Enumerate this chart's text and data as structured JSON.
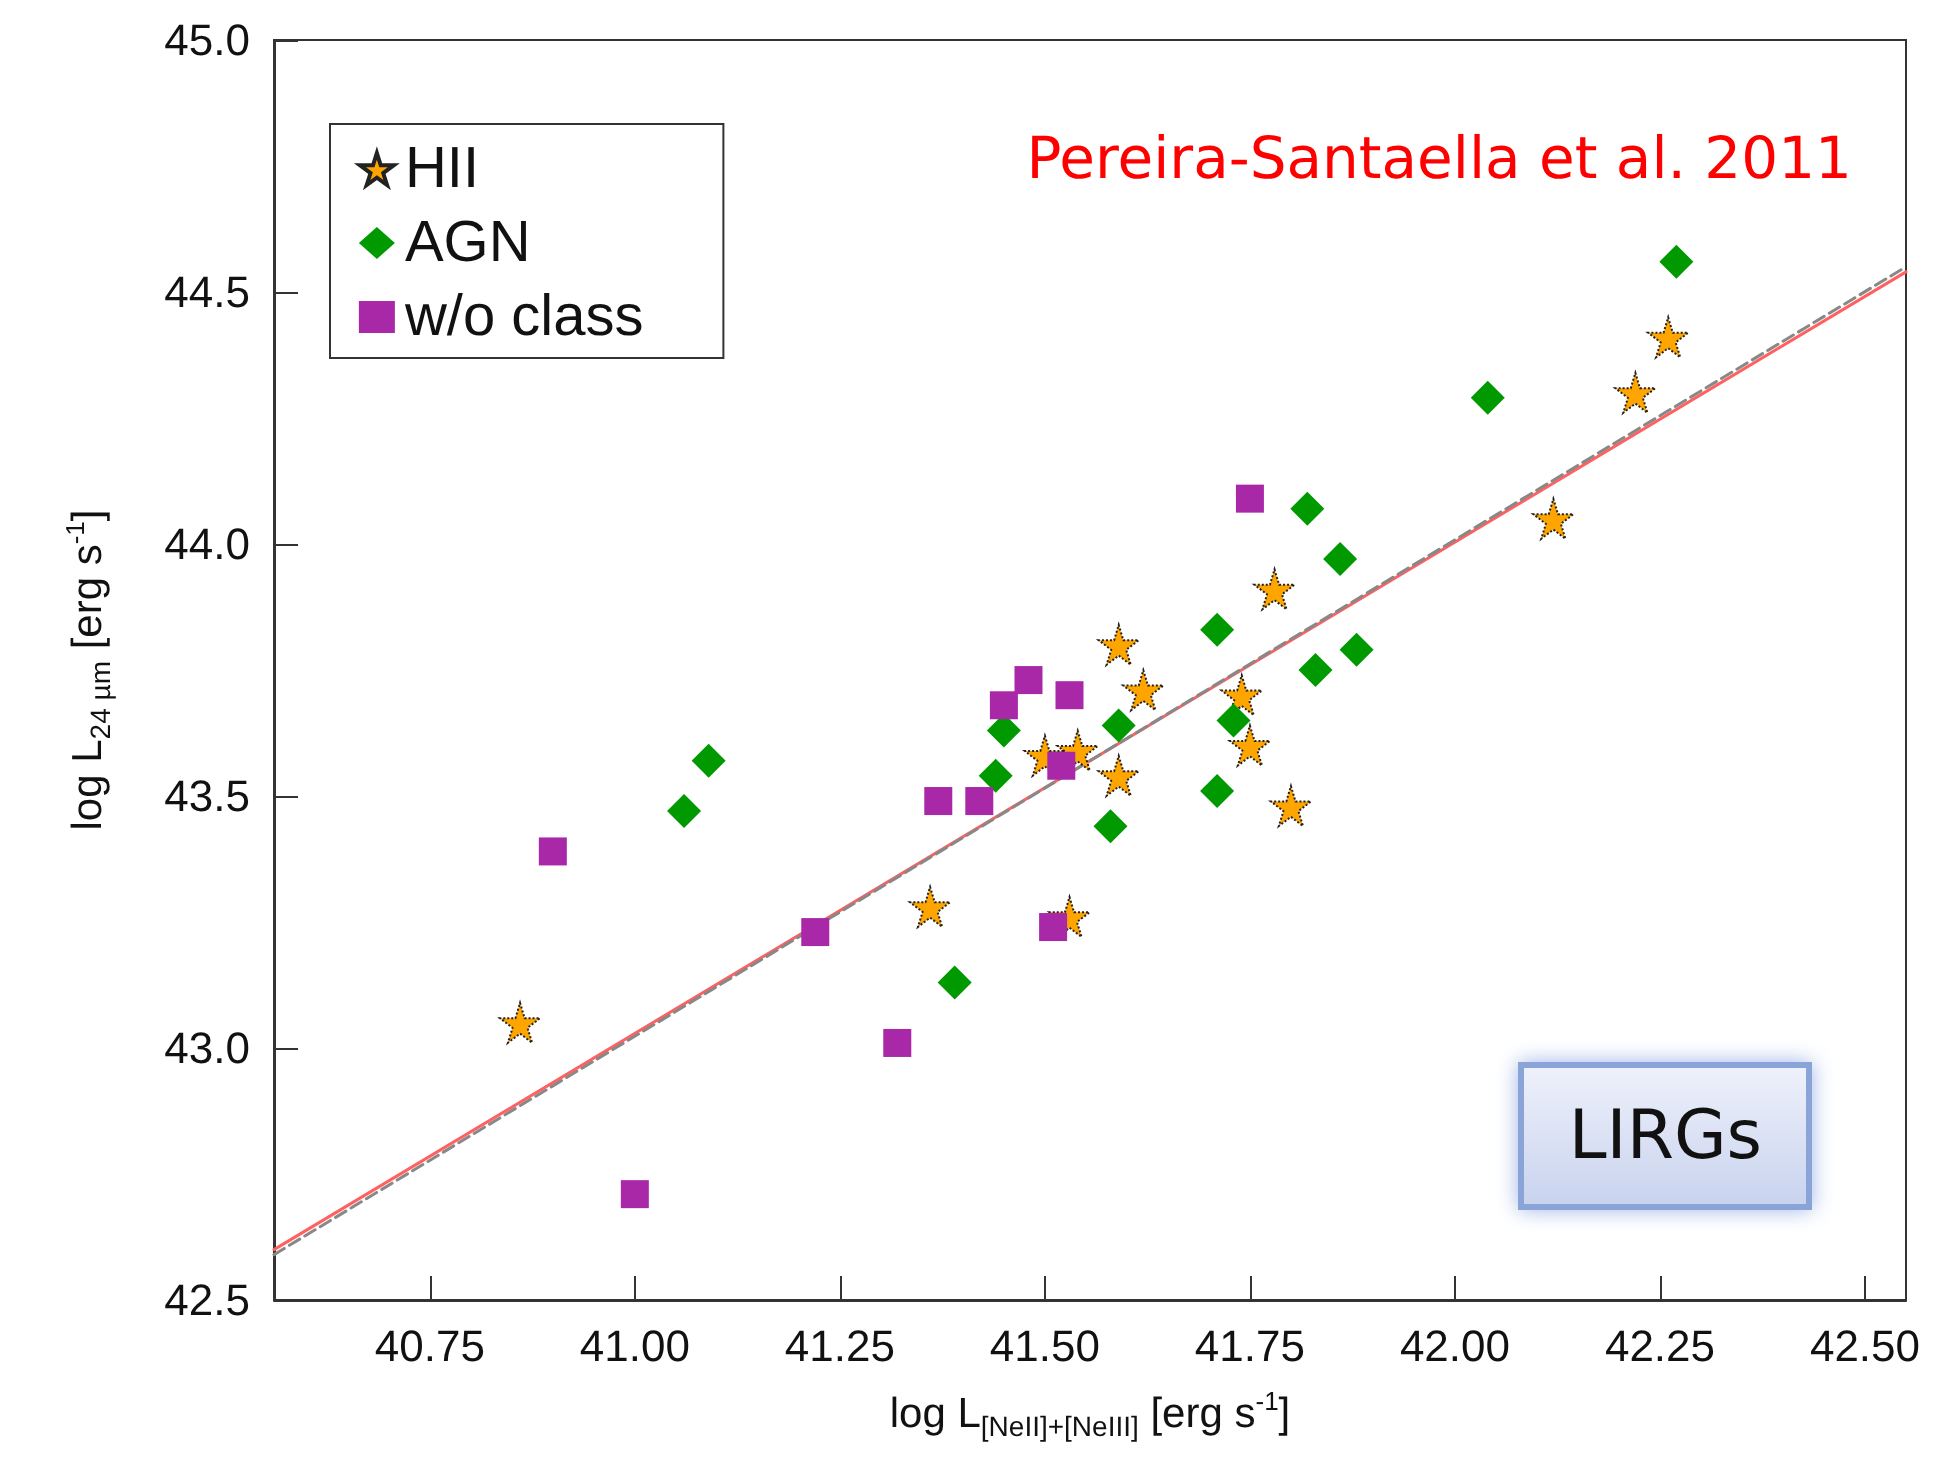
{
  "chart_data": {
    "type": "scatter",
    "xlabel": "log L$_{[NeII]+[NeIII]}$ [erg s$^{-1}$]",
    "ylabel": "log L$_{24 µm}$ [erg s$^{-1}$]",
    "xlim": [
      40.56,
      42.55
    ],
    "xticks": [
      {
        "value": 40.75,
        "label": "40.75"
      },
      {
        "value": 41.0,
        "label": "41.00"
      },
      {
        "value": 41.25,
        "label": "41.25"
      },
      {
        "value": 41.5,
        "label": "41.50"
      },
      {
        "value": 41.75,
        "label": "41.75"
      },
      {
        "value": 42.0,
        "label": "42.00"
      },
      {
        "value": 42.25,
        "label": "42.25"
      },
      {
        "value": 42.5,
        "label": "42.50"
      }
    ],
    "ylim": [
      42.5,
      45.0
    ],
    "yticks": [
      {
        "value": 42.5,
        "label": "42.5"
      },
      {
        "value": 43.0,
        "label": "43.0"
      },
      {
        "value": 43.5,
        "label": "43.5"
      },
      {
        "value": 44.0,
        "label": "44.0"
      },
      {
        "value": 44.5,
        "label": "44.5"
      },
      {
        "value": 45.0,
        "label": "45.0"
      }
    ],
    "grid": false,
    "legend": "top left",
    "annotations": [
      "Pereira-Santaella et al. 2011",
      "LIRGs"
    ],
    "series": [
      {
        "name": "HII",
        "color": "#ffa500",
        "marker": "star",
        "x": [
          40.86,
          41.36,
          41.5,
          41.54,
          41.53,
          41.59,
          41.59,
          41.62,
          41.78,
          41.74,
          41.75,
          41.8,
          42.12,
          42.22,
          42.26
        ],
        "values": [
          43.05,
          43.28,
          43.58,
          43.59,
          43.26,
          43.54,
          43.8,
          43.71,
          43.91,
          43.7,
          43.6,
          43.48,
          44.05,
          44.3,
          44.41
        ]
      },
      {
        "name": "AGN",
        "color": "#009900",
        "marker": "diamond",
        "x": [
          41.06,
          41.09,
          41.39,
          41.45,
          41.44,
          41.58,
          41.59,
          41.71,
          41.71,
          41.73,
          41.83,
          41.88,
          41.86,
          41.82,
          42.04,
          42.27
        ],
        "values": [
          43.47,
          43.57,
          43.13,
          43.63,
          43.54,
          43.44,
          43.64,
          43.83,
          43.51,
          43.65,
          43.75,
          43.79,
          43.97,
          44.07,
          44.29,
          44.56
        ]
      },
      {
        "name": "w/o class",
        "color": "#a828a8",
        "marker": "square",
        "x": [
          40.9,
          41.0,
          41.22,
          41.32,
          41.37,
          41.42,
          41.45,
          41.48,
          41.53,
          41.51,
          41.52,
          41.75
        ],
        "values": [
          43.39,
          42.71,
          43.23,
          43.01,
          43.49,
          43.49,
          43.68,
          43.73,
          43.7,
          43.24,
          43.56,
          44.09
        ]
      },
      {
        "type": "line",
        "color": "#ff6060",
        "marker": "none",
        "line_style": "solid",
        "x": [
          40.56,
          42.55
        ],
        "values": [
          42.6,
          44.54
        ]
      },
      {
        "type": "line",
        "color": "#888888",
        "marker": "none",
        "line_style": "dashed",
        "x": [
          40.56,
          42.55
        ],
        "values": [
          42.59,
          44.55
        ]
      }
    ]
  }
}
